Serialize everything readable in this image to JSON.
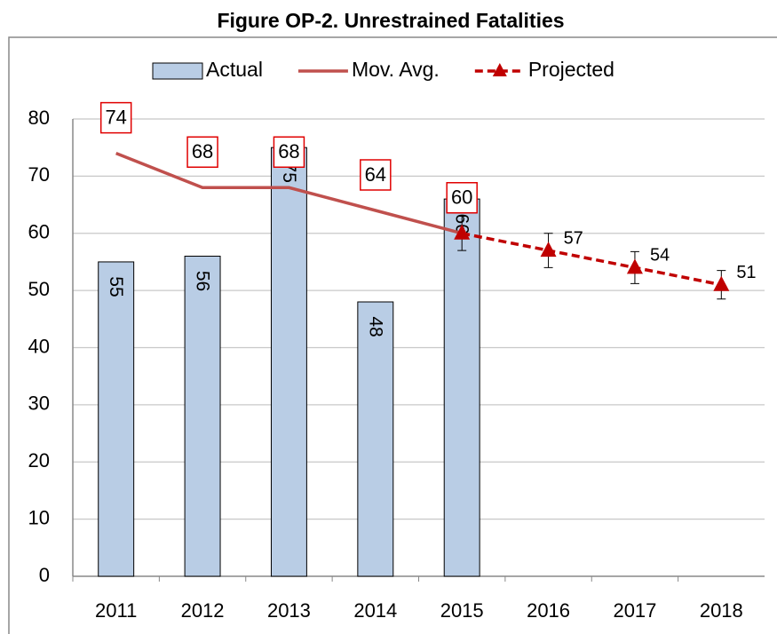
{
  "chart_data": {
    "type": "bar",
    "title": "Figure OP-2. Unrestrained Fatalities",
    "categories": [
      "2011",
      "2012",
      "2013",
      "2014",
      "2015",
      "2016",
      "2017",
      "2018"
    ],
    "series": [
      {
        "name": "Actual",
        "kind": "bar",
        "color": "#b9cde5",
        "values": [
          55,
          56,
          75,
          48,
          66,
          null,
          null,
          null
        ]
      },
      {
        "name": "Mov. Avg.",
        "kind": "line",
        "color": "#c0504d",
        "values": [
          74,
          68,
          68,
          64,
          60,
          null,
          null,
          null
        ]
      },
      {
        "name": "Projected",
        "kind": "dashed-line",
        "color": "#c00000",
        "values": [
          null,
          null,
          null,
          null,
          60,
          57,
          54,
          51
        ],
        "errors": [
          null,
          null,
          null,
          null,
          3,
          3,
          2.8,
          2.5
        ]
      }
    ],
    "ylim": [
      0,
      80
    ],
    "yticks": [
      0,
      10,
      20,
      30,
      40,
      50,
      60,
      70,
      80
    ],
    "grid": true,
    "legend": "top"
  }
}
